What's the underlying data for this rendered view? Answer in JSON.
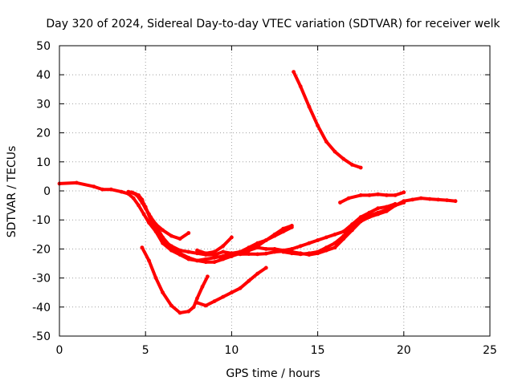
{
  "chart_data": {
    "type": "scatter",
    "title": "Day 320 of 2024, Sidereal Day-to-day VTEC variation (SDTVAR) for receiver welk",
    "xlabel": "GPS time / hours",
    "ylabel": "SDTVAR / TECUs",
    "xlim": [
      0,
      25
    ],
    "ylim": [
      -50,
      50
    ],
    "xticks": [
      0,
      5,
      10,
      15,
      20,
      25
    ],
    "yticks": [
      50,
      40,
      30,
      20,
      10,
      0,
      -10,
      -20,
      -30,
      -40,
      -50
    ],
    "grid": true,
    "color": "#ff0000",
    "series": [
      {
        "name": "trace-1",
        "points": [
          [
            0.0,
            2.5
          ],
          [
            1.0,
            2.8
          ],
          [
            2.0,
            1.5
          ],
          [
            2.5,
            0.5
          ],
          [
            3.0,
            0.5
          ],
          [
            3.6,
            -0.3
          ],
          [
            4.0,
            -1.0
          ],
          [
            4.3,
            -2.5
          ],
          [
            4.6,
            -5.0
          ],
          [
            4.9,
            -8.0
          ],
          [
            5.2,
            -11.0
          ],
          [
            5.6,
            -14.0
          ],
          [
            6.0,
            -17.0
          ],
          [
            6.5,
            -19.0
          ],
          [
            7.0,
            -20.5
          ],
          [
            7.5,
            -21.0
          ],
          [
            8.0,
            -21.5
          ],
          [
            8.5,
            -22.0
          ],
          [
            9.0,
            -22.0
          ],
          [
            9.5,
            -21.0
          ],
          [
            10.0,
            -21.5
          ],
          [
            10.5,
            -21.8
          ],
          [
            11.0,
            -21.7
          ],
          [
            11.5,
            -21.8
          ],
          [
            12.0,
            -21.6
          ],
          [
            12.5,
            -21.0
          ],
          [
            13.0,
            -20.8
          ],
          [
            13.5,
            -21.0
          ],
          [
            14.0,
            -21.5
          ],
          [
            14.5,
            -22.0
          ],
          [
            15.0,
            -21.5
          ],
          [
            15.5,
            -20.5
          ],
          [
            16.0,
            -19.5
          ],
          [
            16.5,
            -16.5
          ],
          [
            17.0,
            -13.5
          ],
          [
            17.5,
            -10.5
          ],
          [
            18.0,
            -9.0
          ],
          [
            18.5,
            -8.0
          ],
          [
            19.0,
            -7.0
          ],
          [
            19.5,
            -5.0
          ],
          [
            20.0,
            -3.5
          ],
          [
            20.5,
            -3.0
          ],
          [
            21.0,
            -2.5
          ],
          [
            21.5,
            -2.8
          ],
          [
            22.0,
            -3.0
          ],
          [
            22.5,
            -3.2
          ],
          [
            23.0,
            -3.5
          ]
        ]
      },
      {
        "name": "trace-2",
        "points": [
          [
            4.3,
            -0.8
          ],
          [
            4.5,
            -1.5
          ],
          [
            4.8,
            -4.0
          ],
          [
            5.2,
            -8.0
          ],
          [
            5.6,
            -12.0
          ],
          [
            6.0,
            -16.0
          ],
          [
            6.5,
            -19.5
          ],
          [
            7.0,
            -21.5
          ],
          [
            7.5,
            -23.0
          ],
          [
            8.0,
            -24.0
          ],
          [
            8.5,
            -24.5
          ],
          [
            9.0,
            -24.5
          ],
          [
            9.5,
            -23.5
          ],
          [
            10.0,
            -22.5
          ],
          [
            10.5,
            -21.0
          ],
          [
            11.0,
            -19.5
          ],
          [
            11.5,
            -18.0
          ],
          [
            12.0,
            -17.0
          ],
          [
            12.5,
            -15.5
          ],
          [
            13.0,
            -14.0
          ],
          [
            13.5,
            -12.5
          ]
        ]
      },
      {
        "name": "trace-3",
        "points": [
          [
            4.5,
            -1.5
          ],
          [
            4.7,
            -2.5
          ],
          [
            5.0,
            -5.5
          ],
          [
            5.3,
            -10.0
          ],
          [
            5.6,
            -14.0
          ],
          [
            6.0,
            -18.0
          ],
          [
            6.5,
            -20.5
          ],
          [
            7.0,
            -22.0
          ],
          [
            7.5,
            -23.5
          ],
          [
            8.0,
            -24.0
          ],
          [
            8.5,
            -23.5
          ],
          [
            9.0,
            -23.0
          ],
          [
            9.5,
            -22.5
          ],
          [
            10.0,
            -21.5
          ],
          [
            10.5,
            -21.0
          ],
          [
            11.0,
            -20.5
          ],
          [
            11.5,
            -19.5
          ],
          [
            12.0,
            -20.0
          ],
          [
            12.5,
            -20.0
          ],
          [
            13.0,
            -20.5
          ],
          [
            13.5,
            -20.0
          ],
          [
            14.0,
            -19.0
          ],
          [
            14.5,
            -18.0
          ],
          [
            15.0,
            -17.0
          ],
          [
            15.5,
            -16.0
          ],
          [
            16.0,
            -15.0
          ],
          [
            16.5,
            -14.0
          ],
          [
            17.0,
            -11.5
          ],
          [
            17.5,
            -9.0
          ],
          [
            18.0,
            -7.5
          ],
          [
            18.5,
            -6.0
          ],
          [
            19.0,
            -5.5
          ],
          [
            19.5,
            -4.5
          ]
        ]
      },
      {
        "name": "trace-4",
        "points": [
          [
            4.0,
            -0.3
          ],
          [
            4.2,
            -0.5
          ],
          [
            4.4,
            -1.0
          ],
          [
            4.6,
            -1.5
          ],
          [
            4.8,
            -3.0
          ],
          [
            5.0,
            -6.0
          ],
          [
            5.3,
            -9.0
          ],
          [
            5.6,
            -11.5
          ],
          [
            6.0,
            -13.5
          ],
          [
            6.5,
            -15.5
          ],
          [
            7.0,
            -16.5
          ],
          [
            7.5,
            -14.5
          ]
        ]
      },
      {
        "name": "trace-5",
        "points": [
          [
            4.8,
            -19.5
          ],
          [
            5.2,
            -24.0
          ],
          [
            5.6,
            -30.0
          ],
          [
            6.0,
            -35.0
          ],
          [
            6.5,
            -39.5
          ],
          [
            7.0,
            -42.0
          ],
          [
            7.5,
            -41.5
          ],
          [
            7.8,
            -40.0
          ],
          [
            8.0,
            -37.0
          ],
          [
            8.3,
            -33.0
          ],
          [
            8.6,
            -29.5
          ]
        ]
      },
      {
        "name": "trace-6",
        "points": [
          [
            8.0,
            -38.5
          ],
          [
            8.5,
            -39.5
          ],
          [
            9.0,
            -38.0
          ],
          [
            9.5,
            -36.5
          ],
          [
            10.0,
            -35.0
          ],
          [
            10.5,
            -33.5
          ],
          [
            11.0,
            -31.0
          ],
          [
            11.5,
            -28.5
          ],
          [
            12.0,
            -26.5
          ]
        ]
      },
      {
        "name": "trace-7",
        "points": [
          [
            8.0,
            -20.5
          ],
          [
            8.5,
            -21.5
          ],
          [
            9.0,
            -21.0
          ],
          [
            9.5,
            -19.0
          ],
          [
            10.0,
            -16.0
          ]
        ]
      },
      {
        "name": "trace-8",
        "points": [
          [
            9.0,
            -22.5
          ],
          [
            9.5,
            -23.0
          ],
          [
            10.0,
            -22.5
          ],
          [
            10.5,
            -21.5
          ],
          [
            11.0,
            -20.5
          ],
          [
            11.5,
            -19.0
          ],
          [
            12.0,
            -17.0
          ],
          [
            12.5,
            -15.0
          ],
          [
            13.0,
            -13.0
          ],
          [
            13.5,
            -12.0
          ]
        ]
      },
      {
        "name": "trace-9",
        "points": [
          [
            13.0,
            -21.0
          ],
          [
            13.5,
            -21.5
          ],
          [
            14.0,
            -21.8
          ],
          [
            14.5,
            -21.5
          ],
          [
            15.0,
            -21.0
          ],
          [
            15.5,
            -19.5
          ],
          [
            16.0,
            -18.0
          ],
          [
            16.5,
            -15.5
          ],
          [
            17.0,
            -12.5
          ],
          [
            17.5,
            -10.0
          ],
          [
            18.0,
            -8.5
          ],
          [
            18.5,
            -7.5
          ],
          [
            19.0,
            -6.5
          ],
          [
            19.5,
            -5.0
          ],
          [
            20.0,
            -4.0
          ]
        ]
      },
      {
        "name": "trace-10",
        "points": [
          [
            16.3,
            -4.0
          ],
          [
            16.8,
            -2.5
          ],
          [
            17.5,
            -1.5
          ],
          [
            18.0,
            -1.5
          ],
          [
            18.5,
            -1.2
          ],
          [
            19.0,
            -1.5
          ],
          [
            19.5,
            -1.5
          ],
          [
            20.0,
            -0.5
          ]
        ]
      },
      {
        "name": "trace-11",
        "points": [
          [
            13.6,
            41.0
          ],
          [
            14.0,
            36.0
          ],
          [
            14.5,
            29.0
          ],
          [
            15.0,
            22.5
          ],
          [
            15.5,
            17.0
          ],
          [
            16.0,
            13.5
          ],
          [
            16.5,
            11.0
          ],
          [
            17.0,
            9.0
          ],
          [
            17.5,
            8.0
          ]
        ]
      }
    ]
  }
}
